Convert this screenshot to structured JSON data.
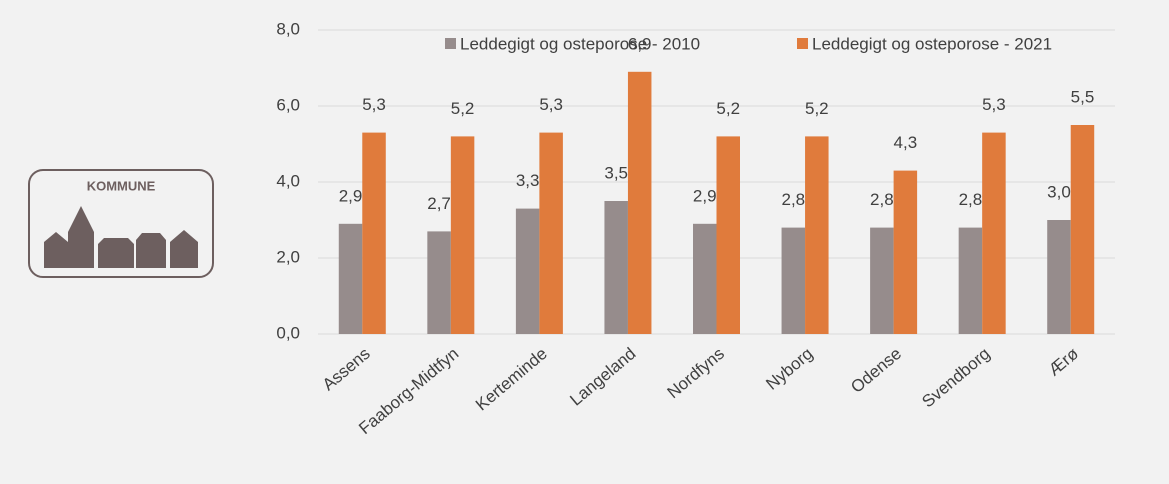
{
  "logo_text": "KOMMUNE",
  "chart_data": {
    "type": "bar",
    "categories": [
      "Assens",
      "Faaborg-Midtfyn",
      "Kerteminde",
      "Langeland",
      "Nordfyns",
      "Nyborg",
      "Odense",
      "Svendborg",
      "Ærø"
    ],
    "series": [
      {
        "name": "Leddegigt og osteporose - 2010",
        "color": "#968c8c",
        "values": [
          2.9,
          2.7,
          3.3,
          3.5,
          2.9,
          2.8,
          2.8,
          2.8,
          3.0
        ],
        "value_labels": [
          "2,9",
          "2,7",
          "3,3",
          "3,5",
          "2,9",
          "2,8",
          "2,8",
          "2,8",
          "3,0"
        ]
      },
      {
        "name": "Leddegigt og osteporose - 2021",
        "color": "#e07b3c",
        "values": [
          5.3,
          5.2,
          5.3,
          6.9,
          5.2,
          5.2,
          4.3,
          5.3,
          5.5
        ],
        "value_labels": [
          "5,3",
          "5,2",
          "5,3",
          "6,9",
          "5,2",
          "5,2",
          "4,3",
          "5,3",
          "5,5"
        ]
      }
    ],
    "ylim": [
      0,
      8
    ],
    "yticks": [
      {
        "value": 0,
        "label": "0,0"
      },
      {
        "value": 2,
        "label": "2,0"
      },
      {
        "value": 4,
        "label": "4,0"
      },
      {
        "value": 6,
        "label": "6,0"
      },
      {
        "value": 8,
        "label": "8,0"
      }
    ],
    "grid": true,
    "legend": "top"
  }
}
